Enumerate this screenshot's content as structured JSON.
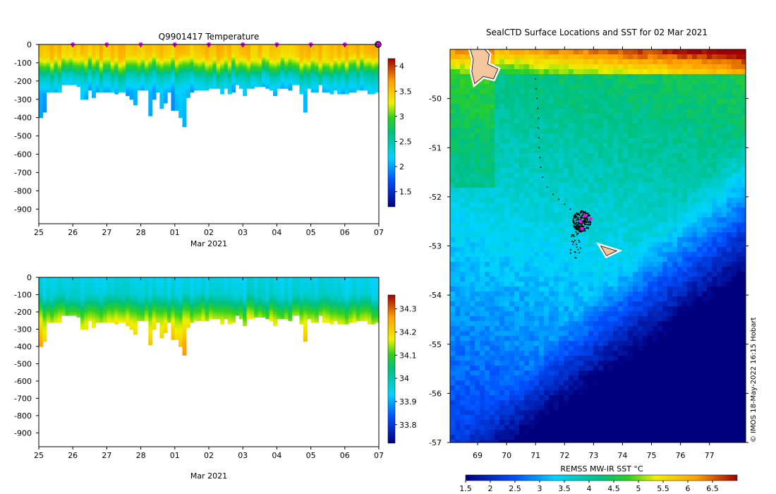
{
  "chart_data": [
    {
      "type": "heatmap",
      "title": "Q9901417  Temperature",
      "xlabel": "Mar 2021",
      "x_tick_labels": [
        "25",
        "26",
        "27",
        "28",
        "01",
        "02",
        "03",
        "04",
        "05",
        "06",
        "07"
      ],
      "y_tick_labels": [
        "0",
        "-100",
        "-200",
        "-300",
        "-400",
        "-500",
        "-600",
        "-700",
        "-800",
        "-900"
      ],
      "ylim": [
        -980,
        0
      ],
      "colorbar": {
        "min": 1.2,
        "max": 4.15,
        "ticks": [
          "1.5",
          "2",
          "2.5",
          "3",
          "3.5",
          "4"
        ],
        "tick_values": [
          1.5,
          2,
          2.5,
          3,
          3.5,
          4
        ]
      },
      "profile_depths": [
        400,
        370,
        260,
        260,
        260,
        260,
        220,
        220,
        220,
        220,
        230,
        300,
        300,
        250,
        290,
        260,
        260,
        260,
        260,
        260,
        270,
        260,
        260,
        280,
        300,
        330,
        250,
        250,
        250,
        390,
        300,
        260,
        350,
        320,
        260,
        360,
        360,
        400,
        450,
        290,
        260,
        250,
        250,
        250,
        250,
        240,
        240,
        240,
        270,
        240,
        270,
        260,
        220,
        240,
        280,
        240,
        240,
        230,
        230,
        230,
        240,
        250,
        280,
        240,
        240,
        240,
        250,
        220,
        220,
        270,
        370,
        240,
        260,
        260,
        220,
        260,
        260,
        270,
        250,
        270,
        270,
        270,
        260,
        260,
        250,
        250,
        250,
        270,
        270,
        260
      ],
      "surface_marker_days": [
        1,
        2,
        3,
        4,
        5,
        6,
        7,
        8,
        9
      ],
      "end_marker_day": 10
    },
    {
      "type": "heatmap",
      "title": "",
      "xlabel": "Mar 2021",
      "x_tick_labels": [
        "25",
        "26",
        "27",
        "28",
        "01",
        "02",
        "03",
        "04",
        "05",
        "06",
        "07"
      ],
      "y_tick_labels": [
        "0",
        "-100",
        "-200",
        "-300",
        "-400",
        "-500",
        "-600",
        "-700",
        "-800",
        "-900"
      ],
      "ylim": [
        -980,
        0
      ],
      "colorbar": {
        "min": 33.72,
        "max": 34.36,
        "ticks": [
          "33.8",
          "33.9",
          "34",
          "34.1",
          "34.2",
          "34.3"
        ],
        "tick_values": [
          33.8,
          33.9,
          34.0,
          34.1,
          34.2,
          34.3
        ]
      }
    },
    {
      "type": "heatmap",
      "title": "SealCTD Surface Locations and SST for 02 Mar 2021",
      "xlabel": "",
      "x_tick_labels": [
        "69",
        "70",
        "71",
        "72",
        "73",
        "74",
        "75",
        "76",
        "77"
      ],
      "y_tick_labels": [
        "-50",
        "-51",
        "-52",
        "-53",
        "-54",
        "-55",
        "-56",
        "-57"
      ],
      "xlim": [
        68.05,
        78.25
      ],
      "ylim": [
        -57.0,
        -49.0
      ],
      "colorbar": {
        "label": "REMSS MW-IR SST °C",
        "min": 1.5,
        "max": 7.0,
        "ticks": [
          "1.5",
          "2",
          "2.5",
          "3",
          "3.5",
          "4",
          "4.5",
          "5",
          "5.5",
          "6",
          "6.5"
        ],
        "tick_values": [
          1.5,
          2,
          2.5,
          3,
          3.5,
          4,
          4.5,
          5,
          5.5,
          6,
          6.5
        ]
      },
      "track_points": [
        [
          71.0,
          -49.6
        ],
        [
          71.02,
          -49.8
        ],
        [
          71.05,
          -50.0
        ],
        [
          71.08,
          -50.2
        ],
        [
          71.1,
          -50.4
        ],
        [
          71.1,
          -50.6
        ],
        [
          71.12,
          -50.8
        ],
        [
          71.12,
          -51.0
        ],
        [
          71.15,
          -51.2
        ],
        [
          71.18,
          -51.4
        ],
        [
          71.25,
          -51.6
        ],
        [
          71.4,
          -51.8
        ],
        [
          71.6,
          -51.95
        ],
        [
          71.8,
          -52.05
        ],
        [
          72.0,
          -52.15
        ],
        [
          72.2,
          -52.25
        ],
        [
          72.4,
          -52.35
        ]
      ],
      "cluster_center": [
        72.6,
        -52.5
      ],
      "magenta_points": [
        [
          72.55,
          -52.5
        ],
        [
          72.7,
          -52.38
        ],
        [
          72.9,
          -52.45
        ],
        [
          72.6,
          -52.65
        ]
      ],
      "islands": [
        {
          "name": "kerguelen",
          "points": [
            [
              68.7,
              -48.9
            ],
            [
              69.1,
              -48.9
            ],
            [
              69.4,
              -49.1
            ],
            [
              69.35,
              -49.3
            ],
            [
              69.7,
              -49.4
            ],
            [
              69.55,
              -49.6
            ],
            [
              69.2,
              -49.55
            ],
            [
              68.9,
              -49.7
            ],
            [
              68.8,
              -49.45
            ],
            [
              68.85,
              -49.2
            ]
          ]
        },
        {
          "name": "heard",
          "points": [
            [
              73.25,
              -53.0
            ],
            [
              73.8,
              -53.1
            ],
            [
              73.45,
              -53.2
            ]
          ]
        }
      ]
    }
  ],
  "credit": "© IMOS 18-May-2022 16:15 Hobart"
}
